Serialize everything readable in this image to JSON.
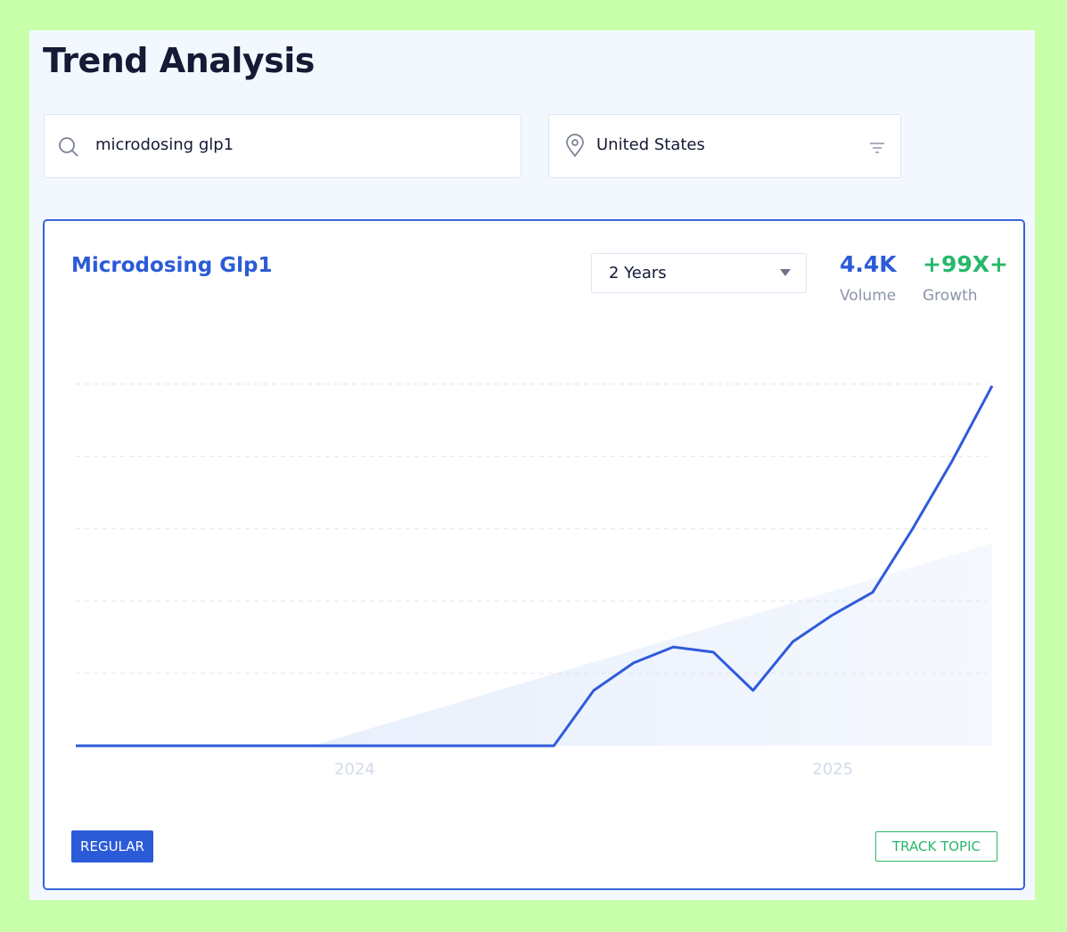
{
  "header": {
    "title": "Trend Analysis"
  },
  "search": {
    "query": "microdosing glp1",
    "location": "United States"
  },
  "card": {
    "title": "Microdosing Glp1",
    "period": "2 Years",
    "stats": [
      {
        "value": "4.4K",
        "label": "Volume"
      },
      {
        "value": "+99X+",
        "label": "Growth"
      }
    ],
    "buttons": {
      "left": "REGULAR",
      "right": "TRACK TOPIC"
    }
  },
  "chart_data": {
    "type": "line",
    "categories": [
      null,
      null,
      null,
      null,
      null,
      null,
      null,
      "2024",
      null,
      null,
      null,
      null,
      null,
      null,
      null,
      null,
      null,
      null,
      null,
      "2025",
      null,
      null,
      null,
      null
    ],
    "series": [
      {
        "name": "Microdosing Glp1",
        "color": "#2f5bdb",
        "values": [
          0,
          0,
          0,
          0,
          0,
          0,
          0,
          0,
          0,
          0,
          0,
          0,
          0,
          15.3,
          22.9,
          27.3,
          25.9,
          15.3,
          28.8,
          36.2,
          42.4,
          59.9,
          78.8,
          99.5
        ]
      }
    ],
    "ylim": [
      0,
      100
    ],
    "yticks": [
      20,
      40,
      60,
      80,
      100
    ],
    "grid": true
  }
}
